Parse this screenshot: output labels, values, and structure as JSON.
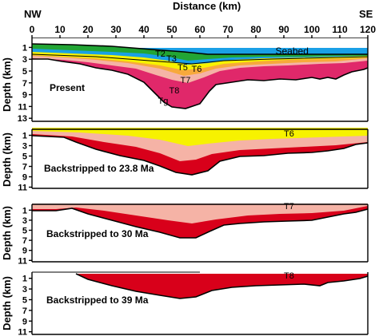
{
  "title": "Distance (km)",
  "direction_labels": {
    "left": "NW",
    "right": "SE"
  },
  "x_axis": {
    "min": 0,
    "max": 120,
    "step": 10,
    "ticks": [
      "0",
      "10",
      "20",
      "30",
      "40",
      "50",
      "60",
      "70",
      "80",
      "90",
      "100",
      "110",
      "120"
    ]
  },
  "y_axis_label": "Depth (km)",
  "depth_ticks": [
    "1",
    "3",
    "5",
    "7",
    "9",
    "11",
    "13"
  ],
  "colors": {
    "water_blue": "#1aa0e6",
    "green": "#22a535",
    "yellow": "#f7f200",
    "orange": "#f7a93b",
    "pink": "#f5b3a6",
    "red": "#d8001a",
    "magenta": "#e0286a"
  },
  "panels": [
    {
      "name": "present",
      "caption": "Present",
      "depth_max": 13,
      "horizons": [
        {
          "label": "T2",
          "x": 44
        },
        {
          "label": "T3",
          "x": 48
        },
        {
          "label": "T5",
          "x": 52
        },
        {
          "label": "T6",
          "x": 57
        },
        {
          "label": "T7",
          "x": 53
        },
        {
          "label": "T8",
          "x": 49
        },
        {
          "label": "Tg",
          "x": 45
        },
        {
          "label": "Seabed",
          "x": 87
        }
      ]
    },
    {
      "name": "backstripped-23-8",
      "caption": "Backstripped to 23.8 Ma",
      "depth_max": 11,
      "horizons": [
        {
          "label": "T6",
          "x": 90
        }
      ]
    },
    {
      "name": "backstripped-30",
      "caption": "Backstripped to 30 Ma",
      "depth_max": 11,
      "horizons": [
        {
          "label": "T7",
          "x": 90
        }
      ]
    },
    {
      "name": "backstripped-39",
      "caption": "Backstripped to 39 Ma",
      "depth_max": 11,
      "horizons": [
        {
          "label": "T8",
          "x": 90
        }
      ]
    }
  ]
}
